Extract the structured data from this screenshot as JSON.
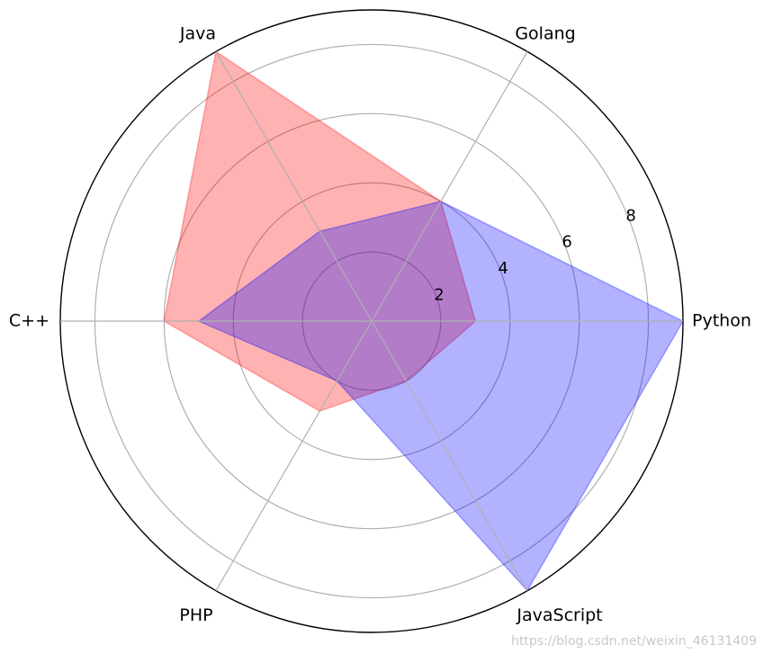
{
  "chart_data": {
    "type": "radar",
    "categories": [
      "Python",
      "Golang",
      "Java",
      "C++",
      "PHP",
      "JavaScript"
    ],
    "series": [
      {
        "values": [
          3,
          4,
          9,
          6,
          3,
          2
        ],
        "color": "#ff0000",
        "fill_opacity": 0.3
      },
      {
        "values": [
          9,
          4,
          3,
          5,
          2,
          9
        ],
        "color": "#0000ff",
        "fill_opacity": 0.3
      }
    ],
    "rlim": [
      0,
      9
    ],
    "rticks": [
      2,
      4,
      6,
      8
    ],
    "rtick_labels": [
      "2",
      "4",
      "6",
      "8"
    ],
    "grid": true
  },
  "watermark": "https://blog.csdn.net/weixin_46131409"
}
